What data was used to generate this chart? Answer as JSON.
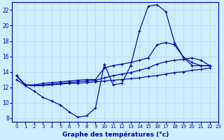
{
  "xlabel": "Graphe des températures (°c)",
  "bg_color": "#cceeff",
  "line_color": "#0000aa",
  "grid_color": "#bbddee",
  "xlim": [
    -0.5,
    23
  ],
  "ylim": [
    7.5,
    23
  ],
  "yticks": [
    8,
    10,
    12,
    14,
    16,
    18,
    20,
    22
  ],
  "xticks": [
    0,
    1,
    2,
    3,
    4,
    5,
    6,
    7,
    8,
    9,
    10,
    11,
    12,
    13,
    14,
    15,
    16,
    17,
    18,
    19,
    20,
    21,
    22,
    23
  ],
  "series": [
    {
      "x": [
        0,
        1,
        2,
        3,
        4,
        5,
        6,
        7,
        8,
        9,
        10,
        11,
        12,
        13,
        14,
        15,
        16,
        17,
        18,
        19,
        20,
        21,
        22
      ],
      "y": [
        13.0,
        12.2,
        11.5,
        10.7,
        10.2,
        9.7,
        8.8,
        8.1,
        8.3,
        9.3,
        15.0,
        12.3,
        12.5,
        14.8,
        19.3,
        22.5,
        22.7,
        21.8,
        17.8,
        15.9,
        14.8,
        14.8,
        14.8
      ]
    },
    {
      "x": [
        0,
        1,
        2,
        3,
        4,
        5,
        6,
        7,
        8,
        9,
        10,
        11,
        12,
        13,
        14,
        15,
        16,
        17,
        18,
        19,
        20,
        21,
        22
      ],
      "y": [
        13.5,
        12.3,
        12.3,
        12.5,
        12.6,
        12.7,
        12.8,
        12.9,
        13.0,
        13.0,
        14.5,
        14.8,
        15.0,
        15.2,
        15.5,
        15.8,
        17.5,
        17.8,
        17.5,
        15.9,
        15.2,
        14.8,
        14.8
      ]
    },
    {
      "x": [
        0,
        1,
        2,
        3,
        4,
        5,
        6,
        7,
        8,
        9,
        10,
        11,
        12,
        13,
        14,
        15,
        16,
        17,
        18,
        19,
        20,
        21,
        22
      ],
      "y": [
        13.5,
        12.3,
        12.2,
        12.3,
        12.4,
        12.5,
        12.6,
        12.7,
        12.8,
        12.9,
        13.2,
        13.5,
        13.7,
        13.9,
        14.2,
        14.5,
        15.0,
        15.3,
        15.5,
        15.6,
        15.8,
        15.5,
        14.8
      ]
    },
    {
      "x": [
        0,
        1,
        2,
        3,
        4,
        5,
        6,
        7,
        8,
        9,
        10,
        11,
        12,
        13,
        14,
        15,
        16,
        17,
        18,
        19,
        20,
        21,
        22
      ],
      "y": [
        13.5,
        12.3,
        12.2,
        12.2,
        12.3,
        12.4,
        12.5,
        12.5,
        12.6,
        12.7,
        12.8,
        12.9,
        13.0,
        13.1,
        13.2,
        13.4,
        13.5,
        13.7,
        13.9,
        14.0,
        14.2,
        14.3,
        14.5
      ]
    }
  ]
}
